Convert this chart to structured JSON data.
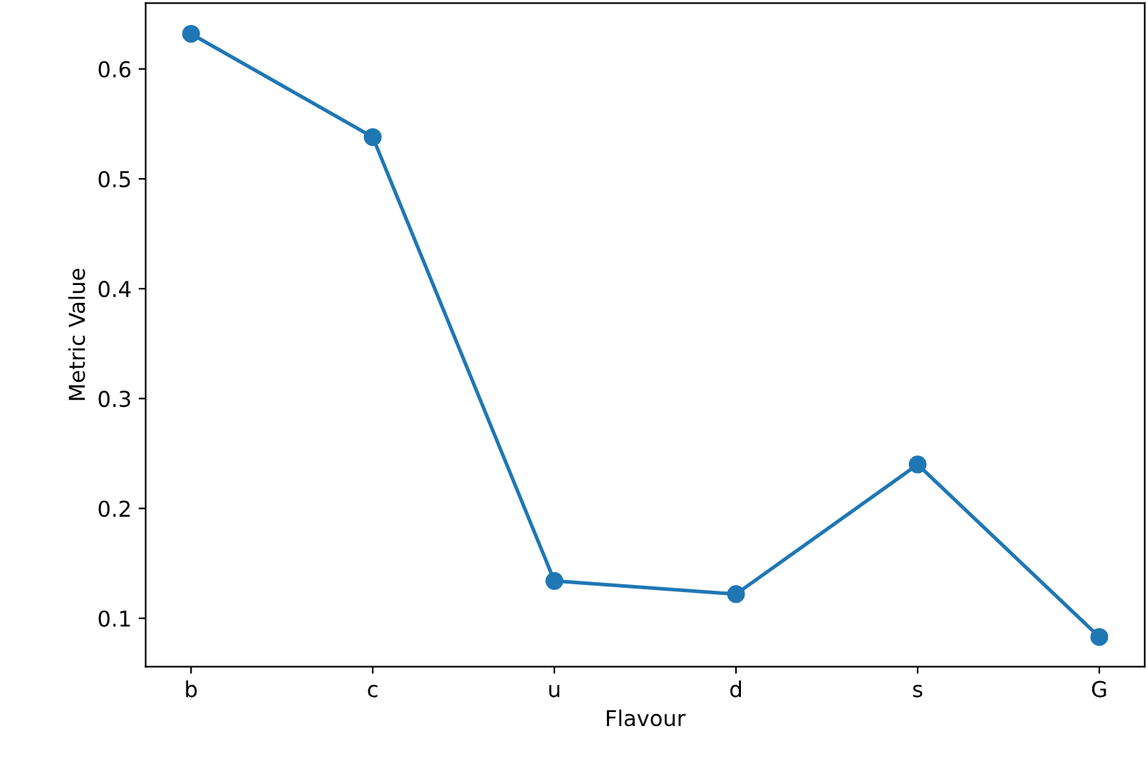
{
  "chart_data": {
    "type": "line",
    "xlabel": "Flavour",
    "ylabel": "Metric Value",
    "categories": [
      "b",
      "c",
      "u",
      "d",
      "s",
      "G"
    ],
    "series": [
      {
        "color": "#1f77b4",
        "values": [
          0.632,
          0.538,
          0.134,
          0.122,
          0.24,
          0.083
        ]
      }
    ],
    "ylim": [
      0.056,
      0.66
    ],
    "yticks": [
      0.1,
      0.2,
      0.3,
      0.4,
      0.5,
      0.6
    ],
    "marker": "circle",
    "line_style": "solid",
    "grid": false,
    "legend": false
  }
}
